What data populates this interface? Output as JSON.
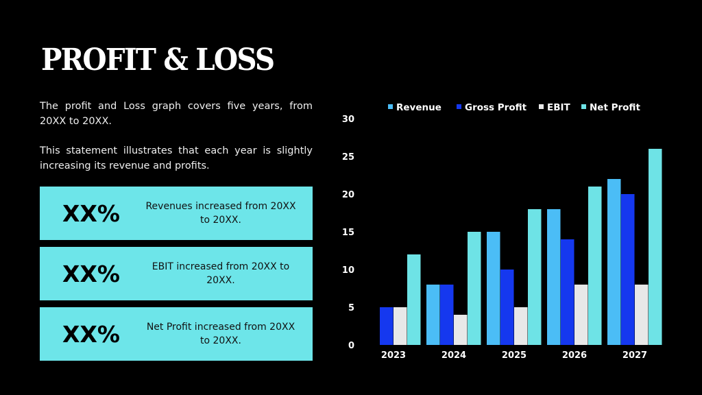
{
  "title": "PROFIT & LOSS",
  "paragraphs": [
    "The profit and Loss graph covers five years, from 20XX to 20XX.",
    "This statement illustrates that each year is slightly increasing its revenue and profits."
  ],
  "stats": [
    {
      "value": "XX%",
      "text": "Revenues increased from 20XX to 20XX."
    },
    {
      "value": "XX%",
      "text": "EBIT increased from 20XX to 20XX."
    },
    {
      "value": "XX%",
      "text": "Net Profit increased from 20XX to 20XX."
    }
  ],
  "colors": {
    "box_bg": "#6de5e9"
  },
  "chart_data": {
    "type": "bar",
    "categories": [
      "2023",
      "2024",
      "2025",
      "2026",
      "2027"
    ],
    "series": [
      {
        "name": "Revenue",
        "color": "#4bbdf6",
        "values": [
          0,
          8,
          15,
          18,
          22
        ]
      },
      {
        "name": "Gross Profit",
        "color": "#1538ef",
        "values": [
          5,
          8,
          10,
          14,
          20
        ]
      },
      {
        "name": "EBIT",
        "color": "#e8e8e8",
        "values": [
          5,
          4,
          5,
          8,
          8
        ]
      },
      {
        "name": "Net Profit",
        "color": "#6ee3e6",
        "values": [
          12,
          15,
          18,
          21,
          26
        ]
      }
    ],
    "ylim": [
      0,
      30
    ],
    "yticks": [
      0,
      5,
      10,
      15,
      20,
      25,
      30
    ],
    "grid": false,
    "legend": "top"
  }
}
